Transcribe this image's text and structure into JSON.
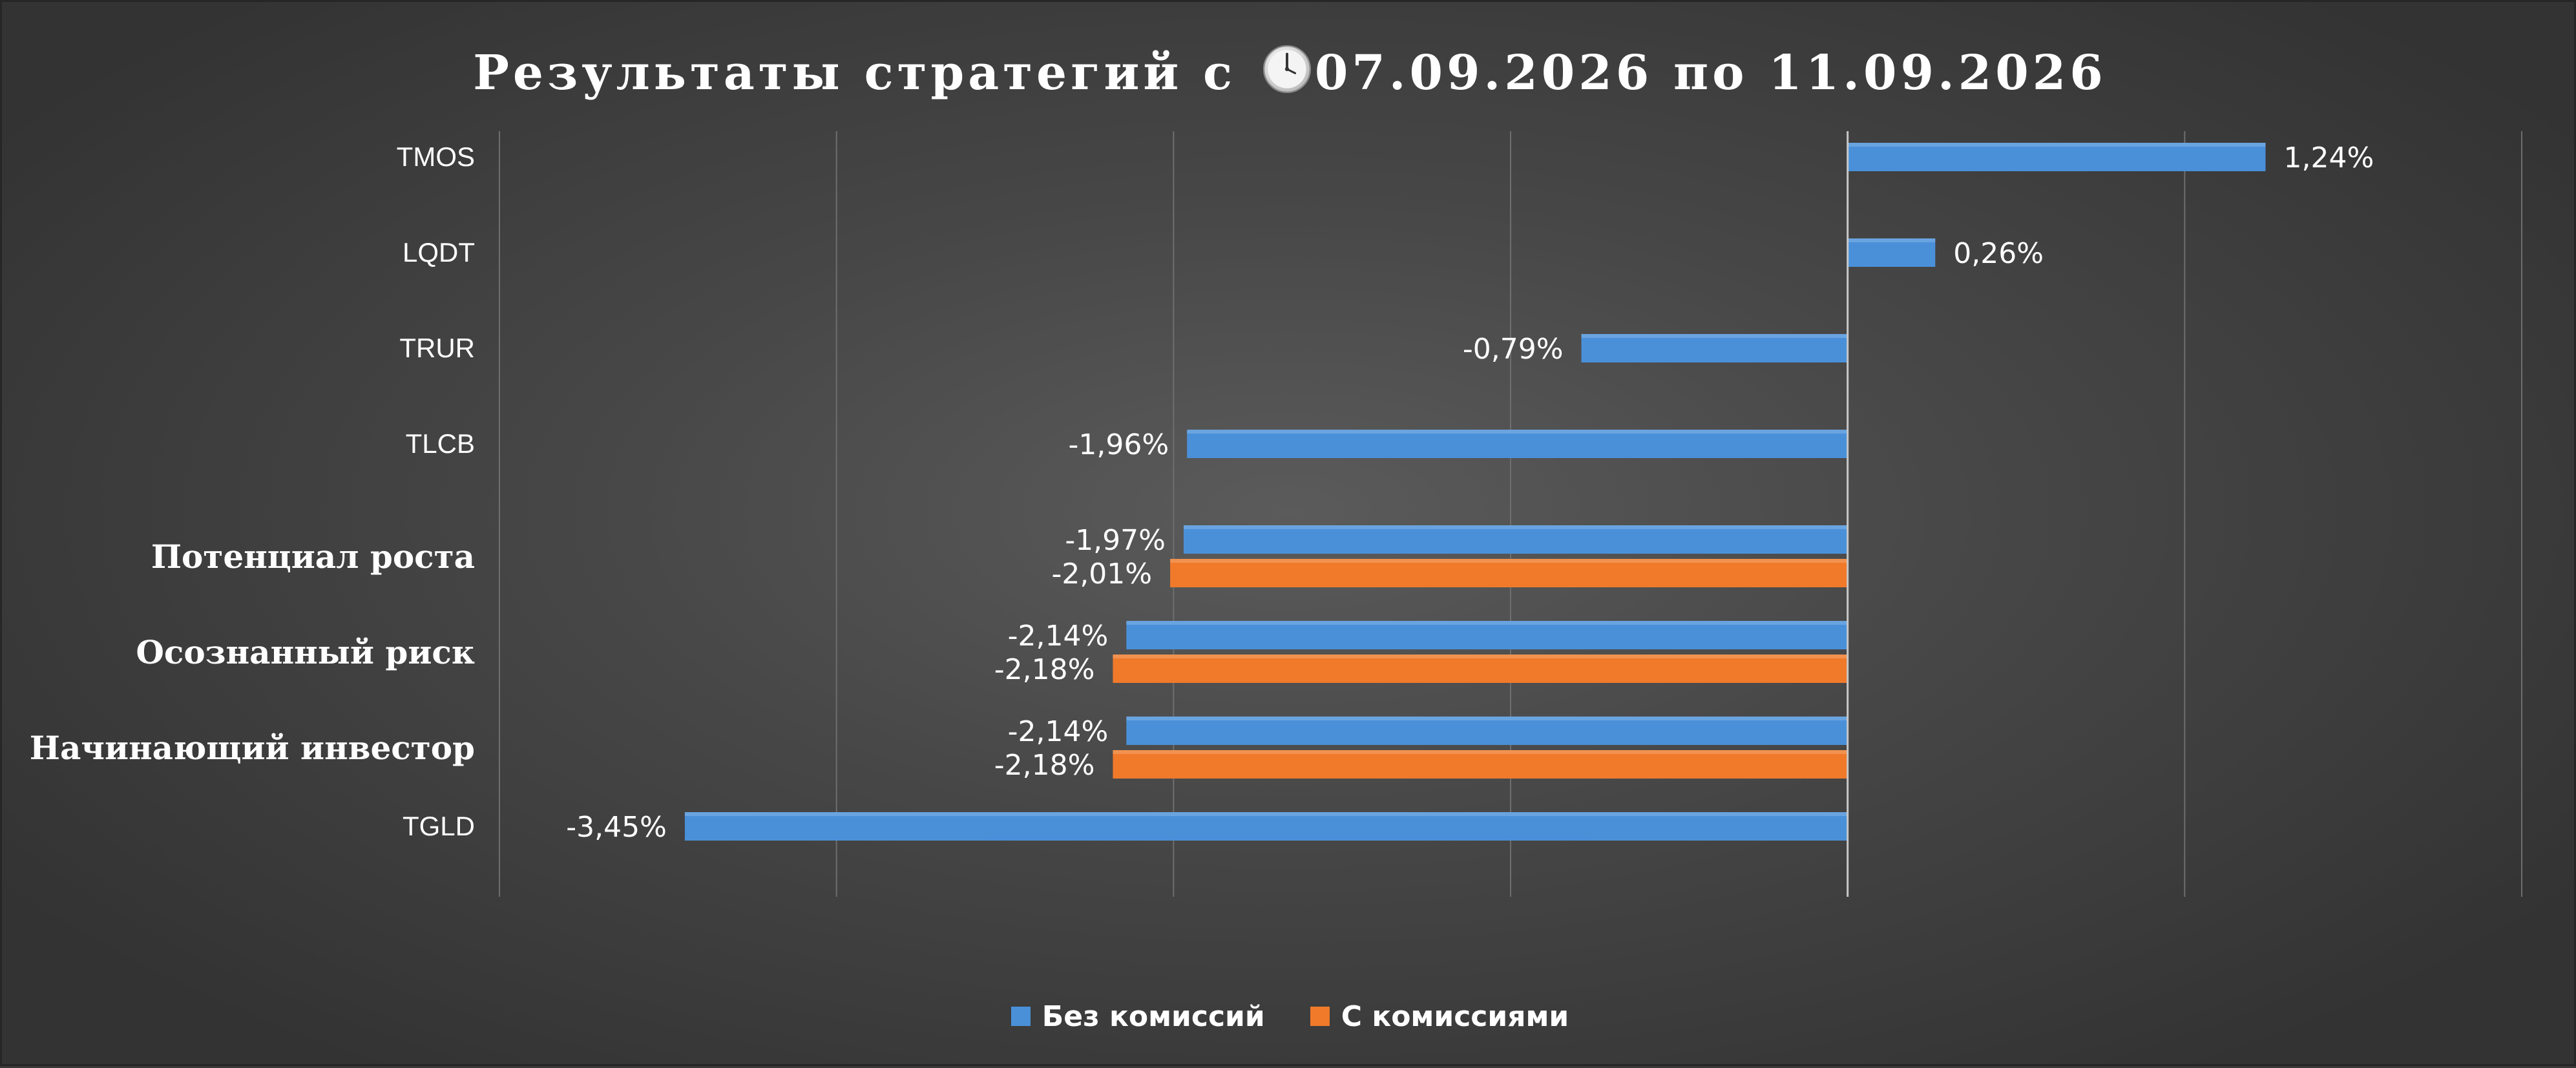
{
  "title": "Результаты стратегий с 07.09.2026 по 11.09.2026",
  "title_prefix": "Результаты стратегий с ",
  "title_suffix": "07.09.2026 по 11.09.2026",
  "title_icon": "clock-icon",
  "chart_data": {
    "type": "bar",
    "orientation": "horizontal",
    "categories": [
      "TMOS",
      "LQDT",
      "TRUR",
      "TLCB",
      "Потенциал роста",
      "Осознанный риск",
      "Начинающий инвестор",
      "TGLD"
    ],
    "category_kind": [
      "fund",
      "fund",
      "fund",
      "fund",
      "strategy",
      "strategy",
      "strategy",
      "fund"
    ],
    "series": [
      {
        "name": "Без комиссий",
        "color": "#4a90d9",
        "values": [
          1.24,
          0.26,
          -0.79,
          -1.96,
          -1.97,
          -2.14,
          -2.14,
          -3.45
        ],
        "labels": [
          "1,24%",
          "0,26%",
          "-0,79%",
          "-1,96%",
          "-1,97%",
          "-2,14%",
          "-2,14%",
          "-3,45%"
        ]
      },
      {
        "name": "С комиссиями",
        "color": "#f07a2a",
        "values": [
          null,
          null,
          null,
          null,
          -2.01,
          -2.18,
          -2.18,
          null
        ],
        "labels": [
          null,
          null,
          null,
          null,
          "-2,01%",
          "-2,18%",
          "-2,18%",
          null
        ]
      }
    ],
    "xlim": [
      -4,
      2
    ],
    "grid": true,
    "legend_position": "bottom"
  }
}
